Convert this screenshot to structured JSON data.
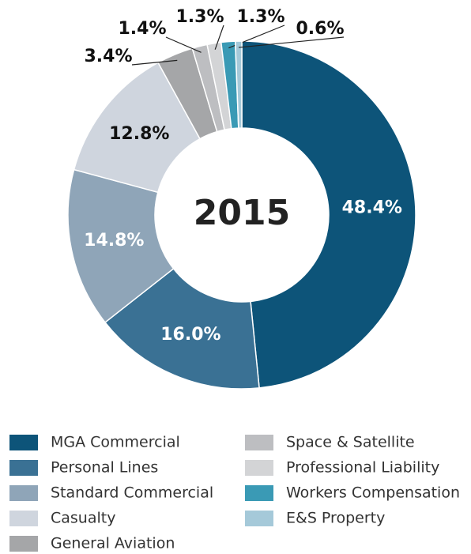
{
  "chart_data": {
    "type": "pie",
    "center_label": "2015",
    "categories": [
      "MGA Commercial",
      "Personal Lines",
      "Standard Commercial",
      "Casualty",
      "General Aviation",
      "Space & Satellite",
      "Professional Liability",
      "Workers Compensation",
      "E&S Property"
    ],
    "values": [
      48.4,
      16.0,
      14.8,
      12.8,
      3.4,
      1.4,
      1.3,
      1.3,
      0.6
    ],
    "value_labels": [
      "48.4%",
      "16.0%",
      "14.8%",
      "12.8%",
      "3.4%",
      "1.4%",
      "1.3%",
      "1.3%",
      "0.6%"
    ],
    "colors": [
      "#0d5479",
      "#3a7194",
      "#8fa5b8",
      "#cfd5de",
      "#a5a6a8",
      "#bdbec1",
      "#d3d4d6",
      "#3a9ab5",
      "#a5c9d9"
    ]
  }
}
